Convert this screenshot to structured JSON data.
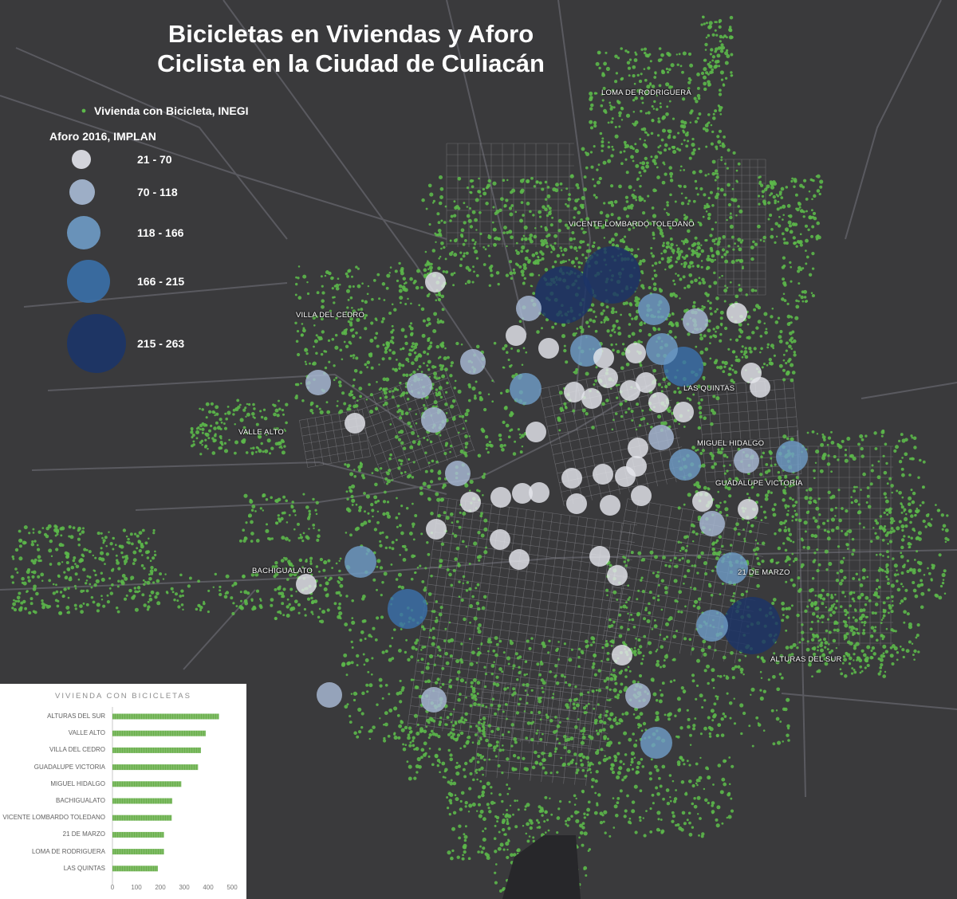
{
  "map": {
    "title_line1": "Bicicletas en Viviendas y Aforo",
    "title_line2": "Ciclista en la Ciudad de Culiacán",
    "legend": {
      "households_label": "Vivienda con Bicicleta, INEGI",
      "aforo_title": "Aforo 2016, IMPLAN",
      "classes": [
        {
          "label": "21 - 70",
          "color": "#e4e5ec"
        },
        {
          "label": "70 - 118",
          "color": "#a9bbd5"
        },
        {
          "label": "118 - 166",
          "color": "#6f9cc6"
        },
        {
          "label": "166 - 215",
          "color": "#3a70a9"
        },
        {
          "label": "215 - 263",
          "color": "#1c3568"
        }
      ]
    },
    "places": [
      "LOMA DE RODRIGUERA",
      "VICENTE LOMBARDO TOLEDANO",
      "VILLA DEL CEDRO",
      "LAS QUINTAS",
      "VALLE ALTO",
      "MIGUEL HIDALGO",
      "GUADALUPE VICTORIA",
      "BACHIGUALATO",
      "21 DE MARZO",
      "ALTURAS DEL SUR"
    ],
    "colors": {
      "background": "#3a3a3c",
      "households": "#5cb84a",
      "streets": "#8e8e94"
    }
  },
  "chart_data": {
    "type": "bar",
    "title": "VIVIENDA CON BICICLETAS",
    "orientation": "horizontal",
    "categories": [
      "ALTURAS DEL SUR",
      "VALLE ALTO",
      "VILLA DEL CEDRO",
      "GUADALUPE VICTORIA",
      "MIGUEL HIDALGO",
      "BACHIGUALATO",
      "VICENTE LOMBARDO TOLEDANO",
      "21 DE MARZO",
      "LOMA DE RODRIGUERA",
      "LAS QUINTAS"
    ],
    "values": [
      445,
      390,
      370,
      358,
      288,
      250,
      248,
      215,
      215,
      190
    ],
    "xlim": [
      0,
      500
    ],
    "xticks": [
      0,
      100,
      200,
      300,
      400,
      500
    ],
    "bar_color": "#6ab04c"
  }
}
